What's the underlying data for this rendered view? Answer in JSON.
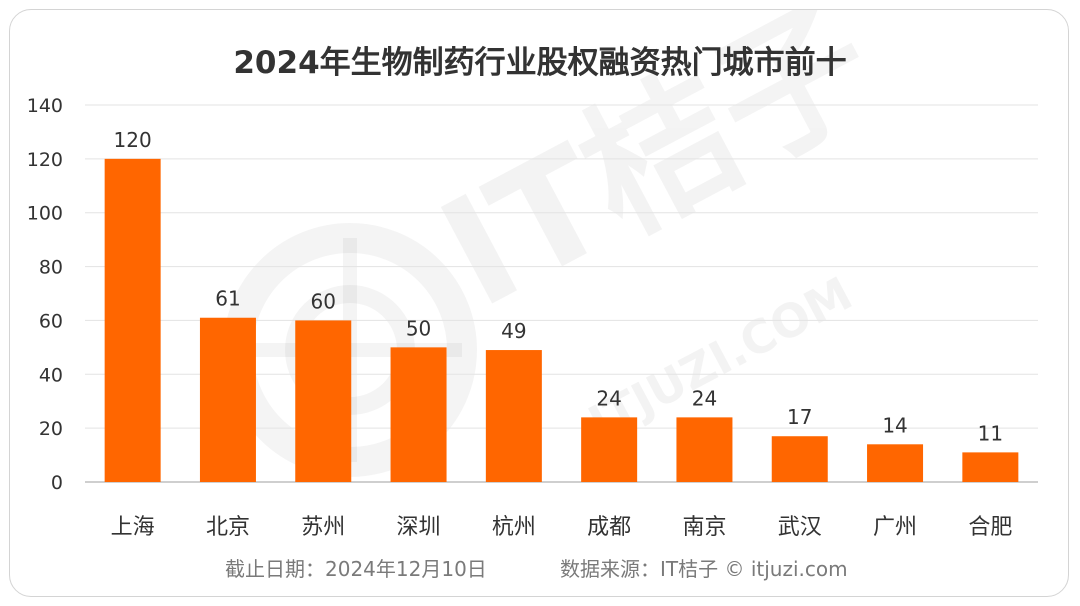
{
  "chart_data": {
    "type": "bar",
    "title": "2024年生物制药行业股权融资热门城市前十",
    "categories": [
      "上海",
      "北京",
      "苏州",
      "深圳",
      "杭州",
      "成都",
      "南京",
      "武汉",
      "广州",
      "合肥"
    ],
    "values": [
      120,
      61,
      60,
      50,
      49,
      24,
      24,
      17,
      14,
      11
    ],
    "ylim": [
      0,
      140
    ],
    "yticks": [
      "0",
      "20",
      "40",
      "60",
      "80",
      "100",
      "120",
      "140"
    ],
    "grid": true,
    "legend": "none",
    "bar_color": "#FF6600"
  },
  "footer": {
    "date_text": "截止日期：2024年12月10日",
    "source_text": "数据来源：IT桔子 © itjuzi.com"
  },
  "watermark": {
    "brand": "IT桔子",
    "domain": "ITJUZI.COM"
  }
}
